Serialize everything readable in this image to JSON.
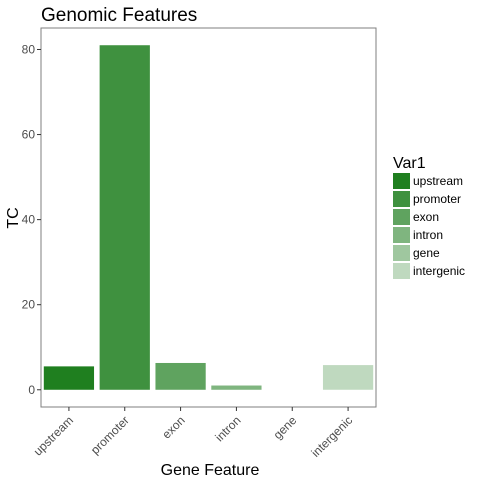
{
  "chart_data": {
    "type": "bar",
    "title": "Genomic Features",
    "xlabel": "Gene Feature",
    "ylabel": "TC",
    "categories": [
      "upstream",
      "promoter",
      "exon",
      "intron",
      "gene",
      "intergenic"
    ],
    "values": [
      5.5,
      81,
      6.3,
      1,
      0,
      5.8
    ],
    "colors": [
      "#1f7f1f",
      "#3f913f",
      "#5fa35f",
      "#7fb57f",
      "#9fc79f",
      "#bfd9bf"
    ],
    "yticks": [
      0,
      20,
      40,
      60,
      80
    ],
    "ylim": [
      -4.05,
      85.05
    ],
    "grid": false,
    "legend": {
      "title": "Var1",
      "position": "right",
      "entries": [
        "upstream",
        "promoter",
        "exon",
        "intron",
        "gene",
        "intergenic"
      ]
    }
  }
}
